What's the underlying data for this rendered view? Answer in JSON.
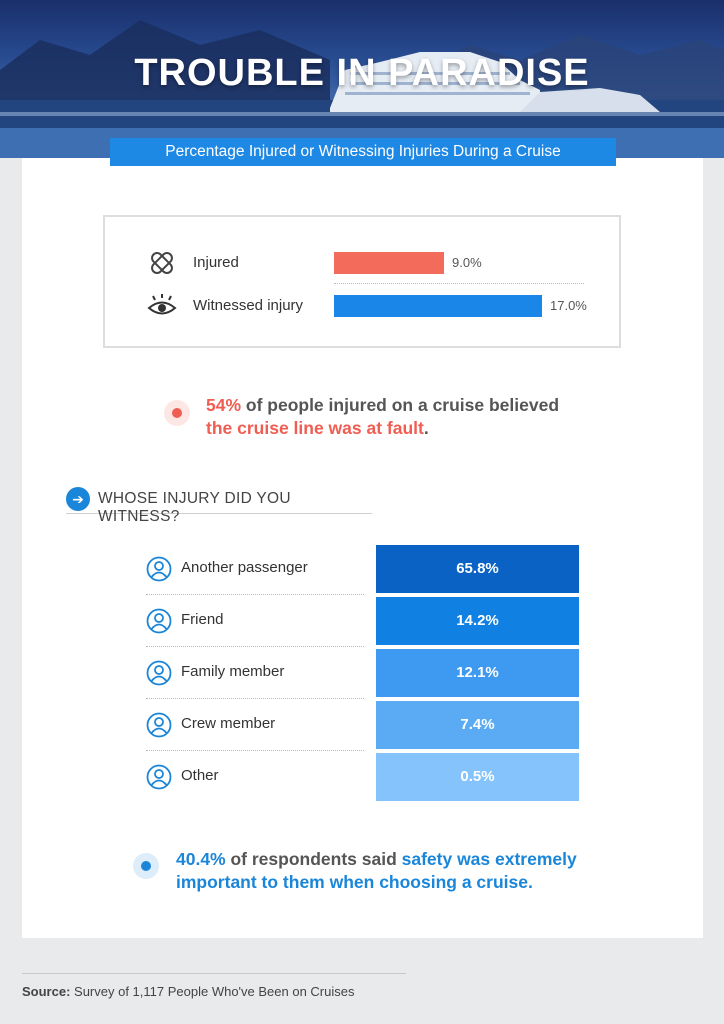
{
  "header": {
    "title": "TROUBLE IN PARADISE",
    "subtitle": "Percentage Injured or Witnessing Injuries During a Cruise"
  },
  "colors": {
    "injured": "#f26b5b",
    "witnessed": "#1a86e8",
    "accent_blue": "#1a86d9",
    "accent_red": "#f05d52",
    "witness_shades": [
      "#0a63c4",
      "#1081e2",
      "#3d9af0",
      "#5aabf4",
      "#84c3fb"
    ]
  },
  "chart_data": [
    {
      "type": "bar",
      "orientation": "horizontal",
      "categories": [
        "Injured",
        "Witnessed injury"
      ],
      "values": [
        9.0,
        17.0
      ],
      "value_labels": [
        "9.0%",
        "17.0%"
      ],
      "icons": [
        "bandage-icon",
        "eye-icon"
      ],
      "xlim": [
        0,
        17
      ]
    },
    {
      "type": "table",
      "title": "WHOSE INJURY DID YOU WITNESS?",
      "categories": [
        "Another passenger",
        "Friend",
        "Family member",
        "Crew member",
        "Other"
      ],
      "values": [
        65.8,
        14.2,
        12.1,
        7.4,
        0.5
      ],
      "value_labels": [
        "65.8%",
        "14.2%",
        "12.1%",
        "7.4%",
        "0.5%"
      ],
      "icons": [
        "person-icon",
        "person-icon",
        "person-icon",
        "person-icon",
        "person-icon"
      ]
    }
  ],
  "callout_fault": {
    "pct": "54%",
    "mid": " of people injured on a cruise believed",
    "highlight": "the cruise line was at fault",
    "end": "."
  },
  "callout_safety": {
    "pct": "40.4%",
    "mid": " of respondents said ",
    "highlight_a": "safety was extremely",
    "line2": "important to them when choosing a cruise."
  },
  "source": {
    "label": "Source:",
    "text": " Survey of 1,117 People Who've Been on Cruises"
  }
}
